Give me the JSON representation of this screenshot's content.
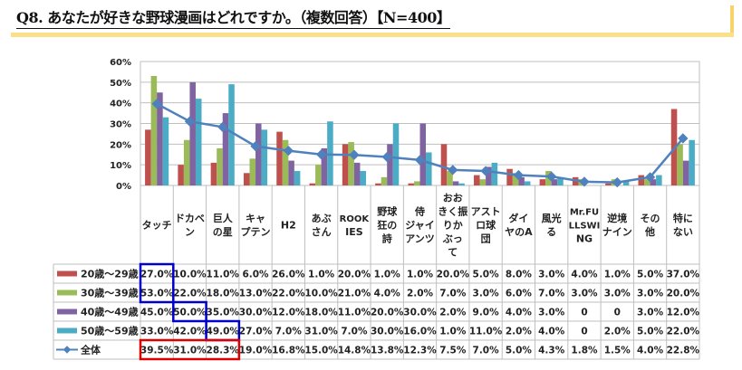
{
  "title": "Q8. あなたが好きな野球漫画はどれですか。（複数回答）【N=400】",
  "chart_data": {
    "type": "bar",
    "title": "Q8. あなたが好きな野球漫画はどれですか。（複数回答）【N=400】",
    "xlabel": "",
    "ylabel": "",
    "ylim": [
      0,
      60
    ],
    "yticks": [
      "0%",
      "10%",
      "20%",
      "30%",
      "40%",
      "50%",
      "60%"
    ],
    "grid": true,
    "legend": "table-bottom",
    "categories": [
      [
        "タッチ"
      ],
      [
        "ドカベ",
        "ン"
      ],
      [
        "巨人",
        "の星"
      ],
      [
        "キャ",
        "プテン"
      ],
      [
        "H2"
      ],
      [
        "あぶ",
        "さん"
      ],
      [
        "ROOK",
        "IES"
      ],
      [
        "野球",
        "狂の",
        "詩"
      ],
      [
        "侍",
        "ジャイ",
        "アンツ"
      ],
      [
        "おお",
        "きく振",
        "りか",
        "ぶっ",
        "て"
      ],
      [
        "アスト",
        "ロ球",
        "団"
      ],
      [
        "ダイ",
        "ヤのA"
      ],
      [
        "風光",
        "る"
      ],
      [
        "Mr.FU",
        "LLSWI",
        "NG"
      ],
      [
        "逆境",
        "ナイン"
      ],
      [
        "その",
        "他"
      ],
      [
        "特に",
        "ない"
      ]
    ],
    "series": [
      {
        "name": "20歳～29歳",
        "type": "bar",
        "color": "#c0504d",
        "values": [
          27.0,
          10.0,
          11.0,
          6.0,
          26.0,
          1.0,
          20.0,
          1.0,
          1.0,
          20.0,
          5.0,
          8.0,
          3.0,
          4.0,
          1.0,
          5.0,
          37.0
        ],
        "labels": [
          "27.0%",
          "10.0%",
          "11.0%",
          "6.0%",
          "26.0%",
          "1.0%",
          "20.0%",
          "1.0%",
          "1.0%",
          "20.0%",
          "5.0%",
          "8.0%",
          "3.0%",
          "4.0%",
          "1.0%",
          "5.0%",
          "37.0%"
        ]
      },
      {
        "name": "30歳～39歳",
        "type": "bar",
        "color": "#9bbb59",
        "values": [
          53.0,
          22.0,
          18.0,
          13.0,
          22.0,
          10.0,
          21.0,
          4.0,
          2.0,
          7.0,
          3.0,
          6.0,
          7.0,
          3.0,
          3.0,
          3.0,
          20.0
        ],
        "labels": [
          "53.0%",
          "22.0%",
          "18.0%",
          "13.0%",
          "22.0%",
          "10.0%",
          "21.0%",
          "4.0%",
          "2.0%",
          "7.0%",
          "3.0%",
          "6.0%",
          "7.0%",
          "3.0%",
          "3.0%",
          "3.0%",
          "20.0%"
        ]
      },
      {
        "name": "40歳～49歳",
        "type": "bar",
        "color": "#8064a2",
        "values": [
          45.0,
          50.0,
          35.0,
          30.0,
          12.0,
          18.0,
          11.0,
          20.0,
          30.0,
          2.0,
          9.0,
          4.0,
          3.0,
          0,
          0,
          3.0,
          12.0
        ],
        "labels": [
          "45.0%",
          "50.0%",
          "35.0%",
          "30.0%",
          "12.0%",
          "18.0%",
          "11.0%",
          "20.0%",
          "30.0%",
          "2.0%",
          "9.0%",
          "4.0%",
          "3.0%",
          "0",
          "0",
          "3.0%",
          "12.0%"
        ]
      },
      {
        "name": "50歳～59歳",
        "type": "bar",
        "color": "#4bacc6",
        "values": [
          33.0,
          42.0,
          49.0,
          27.0,
          7.0,
          31.0,
          7.0,
          30.0,
          16.0,
          1.0,
          11.0,
          2.0,
          4.0,
          0,
          2.0,
          5.0,
          22.0
        ],
        "labels": [
          "33.0%",
          "42.0%",
          "49.0%",
          "27.0%",
          "7.0%",
          "31.0%",
          "7.0%",
          "30.0%",
          "16.0%",
          "1.0%",
          "11.0%",
          "2.0%",
          "4.0%",
          "0",
          "2.0%",
          "5.0%",
          "22.0%"
        ]
      },
      {
        "name": "全体",
        "type": "line",
        "color": "#4f81bd",
        "values": [
          39.5,
          31.0,
          28.3,
          19.0,
          16.8,
          15.0,
          14.8,
          13.8,
          12.3,
          7.5,
          7.0,
          5.0,
          4.3,
          1.8,
          1.5,
          4.0,
          22.8
        ],
        "labels": [
          "39.5%",
          "31.0%",
          "28.3%",
          "19.0%",
          "16.8%",
          "15.0%",
          "14.8%",
          "13.8%",
          "12.3%",
          "7.5%",
          "7.0%",
          "5.0%",
          "4.3%",
          "1.8%",
          "1.5%",
          "4.0%",
          "22.8%"
        ]
      }
    ],
    "annotations": [
      {
        "type": "highlight-box",
        "color": "#0000cc",
        "cells": [
          [
            0,
            0
          ],
          [
            1,
            0
          ]
        ]
      },
      {
        "type": "highlight-box",
        "color": "#0000cc",
        "cells": [
          [
            2,
            1
          ]
        ]
      },
      {
        "type": "highlight-box",
        "color": "#0000cc",
        "cells": [
          [
            3,
            2
          ]
        ]
      },
      {
        "type": "highlight-box",
        "color": "#dd0000",
        "cells": [
          [
            4,
            0
          ],
          [
            4,
            1
          ],
          [
            4,
            2
          ]
        ]
      }
    ]
  }
}
